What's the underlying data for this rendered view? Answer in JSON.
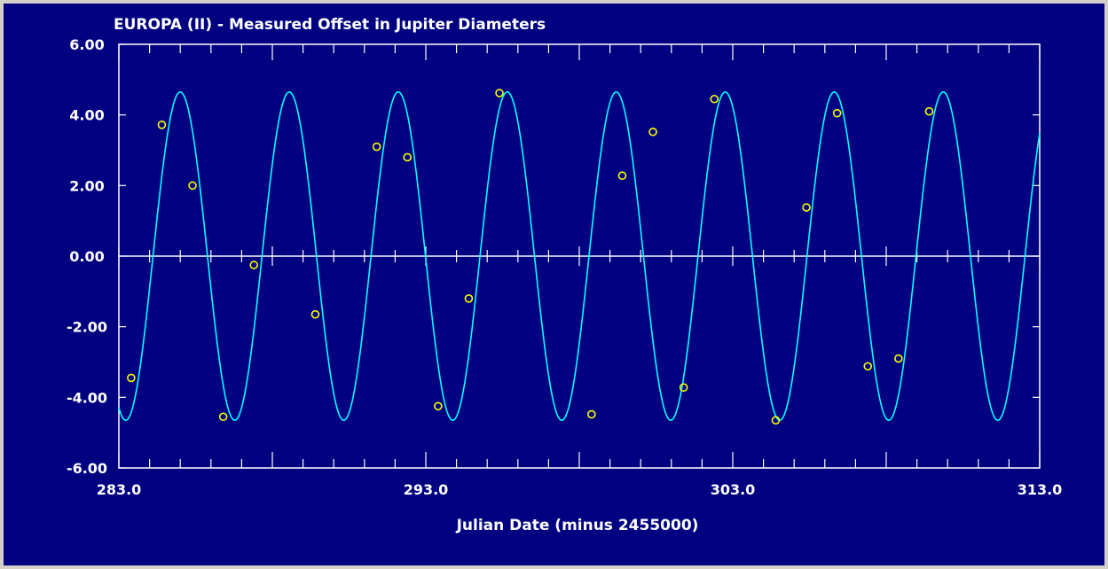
{
  "chart_data": {
    "type": "scatter",
    "title": "EUROPA (II) - Measured Offset in Jupiter Diameters",
    "xlabel": "Julian Date (minus 2455000)",
    "ylabel": "",
    "xlim": [
      283.0,
      313.0
    ],
    "ylim": [
      -6.0,
      6.0
    ],
    "x_tick_labels": [
      "283.0",
      "293.0",
      "303.0",
      "313.0"
    ],
    "y_tick_labels": [
      "6.00",
      "4.00",
      "2.00",
      "0.00",
      "-2.00",
      "-4.00",
      "-6.00"
    ],
    "observed": {
      "x": [
        283.4,
        284.4,
        285.4,
        286.4,
        287.4,
        289.4,
        291.4,
        292.4,
        293.4,
        294.4,
        295.4,
        298.4,
        299.4,
        300.4,
        301.4,
        302.4,
        304.4,
        305.4,
        306.4,
        307.4,
        308.4,
        309.4
      ],
      "y": [
        -3.45,
        3.72,
        2.0,
        -4.55,
        -0.25,
        -1.65,
        3.1,
        2.8,
        -4.25,
        -1.2,
        4.62,
        -4.48,
        2.28,
        3.52,
        -3.72,
        4.45,
        -4.65,
        1.38,
        4.05,
        -3.12,
        -2.9,
        4.1
      ]
    },
    "fit": {
      "amplitude": 4.65,
      "period_days": 3.5512,
      "peak_x": 285.0
    },
    "colors": {
      "background": "#000080",
      "fit_line": "#00ffff",
      "points": "#ffff00",
      "axes": "#ffffff",
      "text": "#ffffff"
    }
  }
}
